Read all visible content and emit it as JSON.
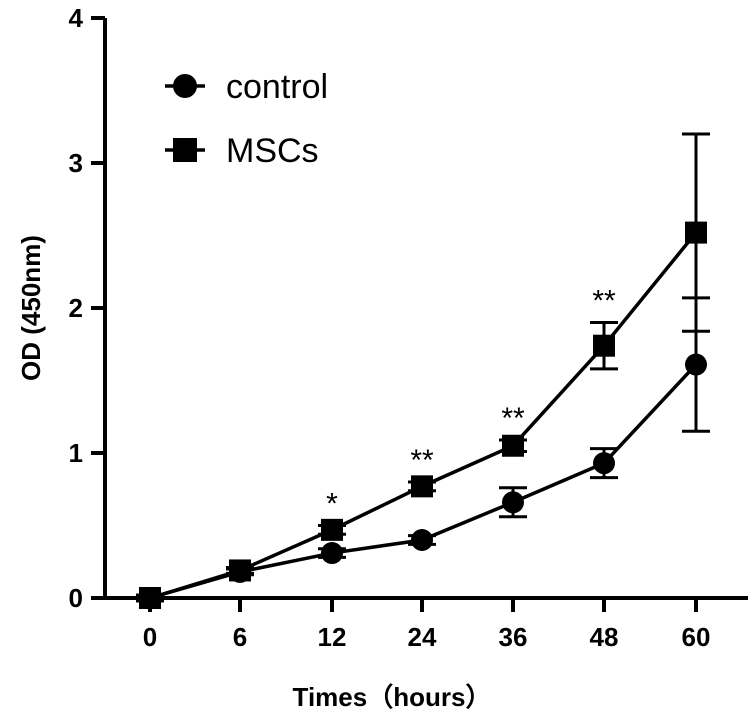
{
  "chart_data": {
    "type": "line",
    "title": "",
    "xlabel": "Times（hours）",
    "ylabel": "OD (450nm)",
    "categories": [
      "0",
      "6",
      "12",
      "24",
      "36",
      "48",
      "60"
    ],
    "ylim": [
      0,
      4
    ],
    "yticks": [
      "0",
      "1",
      "2",
      "3",
      "4"
    ],
    "legend_position": "top-left",
    "series": [
      {
        "name": "control",
        "marker": "circle",
        "values": [
          0.0,
          0.18,
          0.31,
          0.4,
          0.66,
          0.93,
          1.61
        ],
        "errors": [
          0.02,
          0.02,
          0.03,
          0.03,
          0.1,
          0.1,
          0.46
        ]
      },
      {
        "name": "MSCs",
        "marker": "square",
        "values": [
          0.0,
          0.19,
          0.47,
          0.77,
          1.05,
          1.74,
          2.52
        ],
        "errors": [
          0.02,
          0.02,
          0.03,
          0.03,
          0.04,
          0.16,
          0.68
        ]
      }
    ],
    "significance": [
      {
        "category": "12",
        "label": "*"
      },
      {
        "category": "24",
        "label": "**"
      },
      {
        "category": "36",
        "label": "**"
      },
      {
        "category": "48",
        "label": "**"
      }
    ],
    "colors": {
      "line": "#000000",
      "background": "#ffffff"
    }
  }
}
